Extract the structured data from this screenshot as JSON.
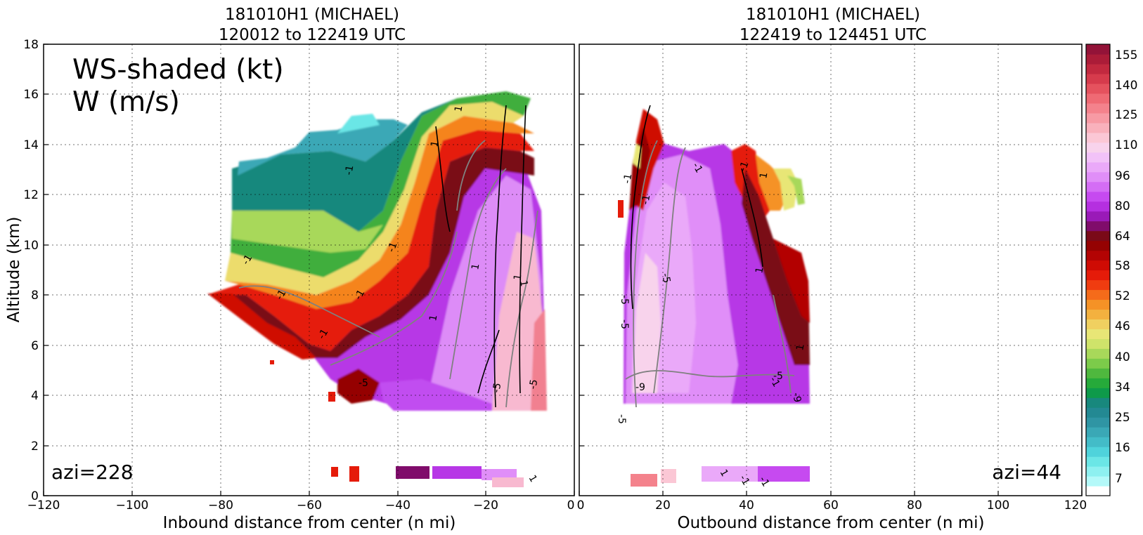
{
  "colors": {
    "colorbar": [
      "#ffffff",
      "#b4f9f9",
      "#8ef0f0",
      "#6be6e6",
      "#4fd3db",
      "#43bcc8",
      "#3aa8b6",
      "#2f95a4",
      "#238993",
      "#18887d",
      "#0e9a4a",
      "#26aa3a",
      "#4fb83e",
      "#7ccb4a",
      "#a8d85a",
      "#cfe36a",
      "#e8e676",
      "#f0d060",
      "#f3b13f",
      "#f59226",
      "#f56b1a",
      "#f03c10",
      "#e51b09",
      "#cf0b04",
      "#b30303",
      "#950202",
      "#7a0a18",
      "#800c6b",
      "#9a1ab8",
      "#b52fe0",
      "#c64af0",
      "#d46df5",
      "#e08ef8",
      "#eaa9f9",
      "#f2c2f8",
      "#f8d3ec",
      "#fbc7d5",
      "#f9b1bc",
      "#f79aa4",
      "#f4828c",
      "#ef6a74",
      "#e5525e",
      "#d63b4c",
      "#c2293f",
      "#ab1c38",
      "#931338"
    ],
    "contour_positive": "#000000",
    "contour_negative": "#808080"
  },
  "chart_data": [
    {
      "type": "heatmap",
      "title": "181010H1 (MICHAEL)",
      "subtitle": "120012 to 122419 UTC",
      "xlabel": "Inbound distance from center (n mi)",
      "ylabel": "Altitude (km)",
      "xlim": [
        -120,
        0
      ],
      "ylim": [
        0,
        18
      ],
      "xticks": [
        "−120",
        "−100",
        "−80",
        "−60",
        "−40",
        "−20",
        "0"
      ],
      "yticks": [
        "0",
        "2",
        "4",
        "6",
        "8",
        "10",
        "12",
        "14",
        "16",
        "18"
      ],
      "grid": true,
      "annotation_main": [
        "WS-shaded (kt)",
        "W (m/s)"
      ],
      "annotation_corner": "azi=228",
      "shaded_field": "WS",
      "contour_field": "W",
      "contour_labels": [
        "-1",
        "-1",
        "-1",
        "-1",
        "-1",
        "-1",
        "1",
        "1",
        "1",
        "-5",
        "-5",
        "-5",
        "1",
        "1",
        "1",
        "1"
      ],
      "wind_profile": [
        {
          "x": -78,
          "bottom": 8.0,
          "top": 12.4
        },
        {
          "x": -70,
          "bottom": 7.2,
          "top": 12.8
        },
        {
          "x": -60,
          "bottom": 6.0,
          "top": 14.6
        },
        {
          "x": -50,
          "bottom": 3.6,
          "top": 14.2
        },
        {
          "x": -40,
          "bottom": 3.5,
          "top": 14.6
        },
        {
          "x": -30,
          "bottom": 3.5,
          "top": 14.8
        },
        {
          "x": -20,
          "bottom": 3.5,
          "top": 15.6
        },
        {
          "x": -12,
          "bottom": 3.3,
          "top": 16.1
        },
        {
          "x": -8,
          "bottom": 3.2,
          "top": 14.5
        }
      ]
    },
    {
      "type": "heatmap",
      "title": "181010H1 (MICHAEL)",
      "subtitle": "122419 to 124451 UTC",
      "xlabel": "Outbound distance from center (n mi)",
      "ylabel": "",
      "xlim": [
        0,
        120
      ],
      "ylim": [
        0,
        18
      ],
      "xticks": [
        "0",
        "20",
        "40",
        "60",
        "80",
        "100",
        "120"
      ],
      "yticks": [],
      "grid": true,
      "annotation_corner": "azi=44",
      "shaded_field": "WS",
      "contour_field": "W",
      "contour_labels": [
        "-1",
        "-1",
        "-1",
        "-1",
        "-5",
        "-5",
        "-5",
        "-9",
        "-5",
        "1",
        "1",
        "1",
        "1",
        "-1",
        "-1",
        "-1",
        "-5",
        "-9"
      ],
      "wind_profile": [
        {
          "x": 11,
          "bottom": 3.1,
          "top": 13.5
        },
        {
          "x": 15,
          "bottom": 3.3,
          "top": 15.5
        },
        {
          "x": 25,
          "bottom": 3.5,
          "top": 13.8
        },
        {
          "x": 35,
          "bottom": 3.5,
          "top": 13.7
        },
        {
          "x": 45,
          "bottom": 3.5,
          "top": 12.5
        },
        {
          "x": 50,
          "bottom": 3.5,
          "top": 9.5
        },
        {
          "x": 55,
          "bottom": 3.5,
          "top": 7.8
        }
      ]
    }
  ],
  "colorbar": {
    "tick_labels": [
      "155",
      "140",
      "125",
      "110",
      "96",
      "80",
      "64",
      "58",
      "52",
      "46",
      "40",
      "34",
      "25",
      "16",
      "7"
    ]
  }
}
